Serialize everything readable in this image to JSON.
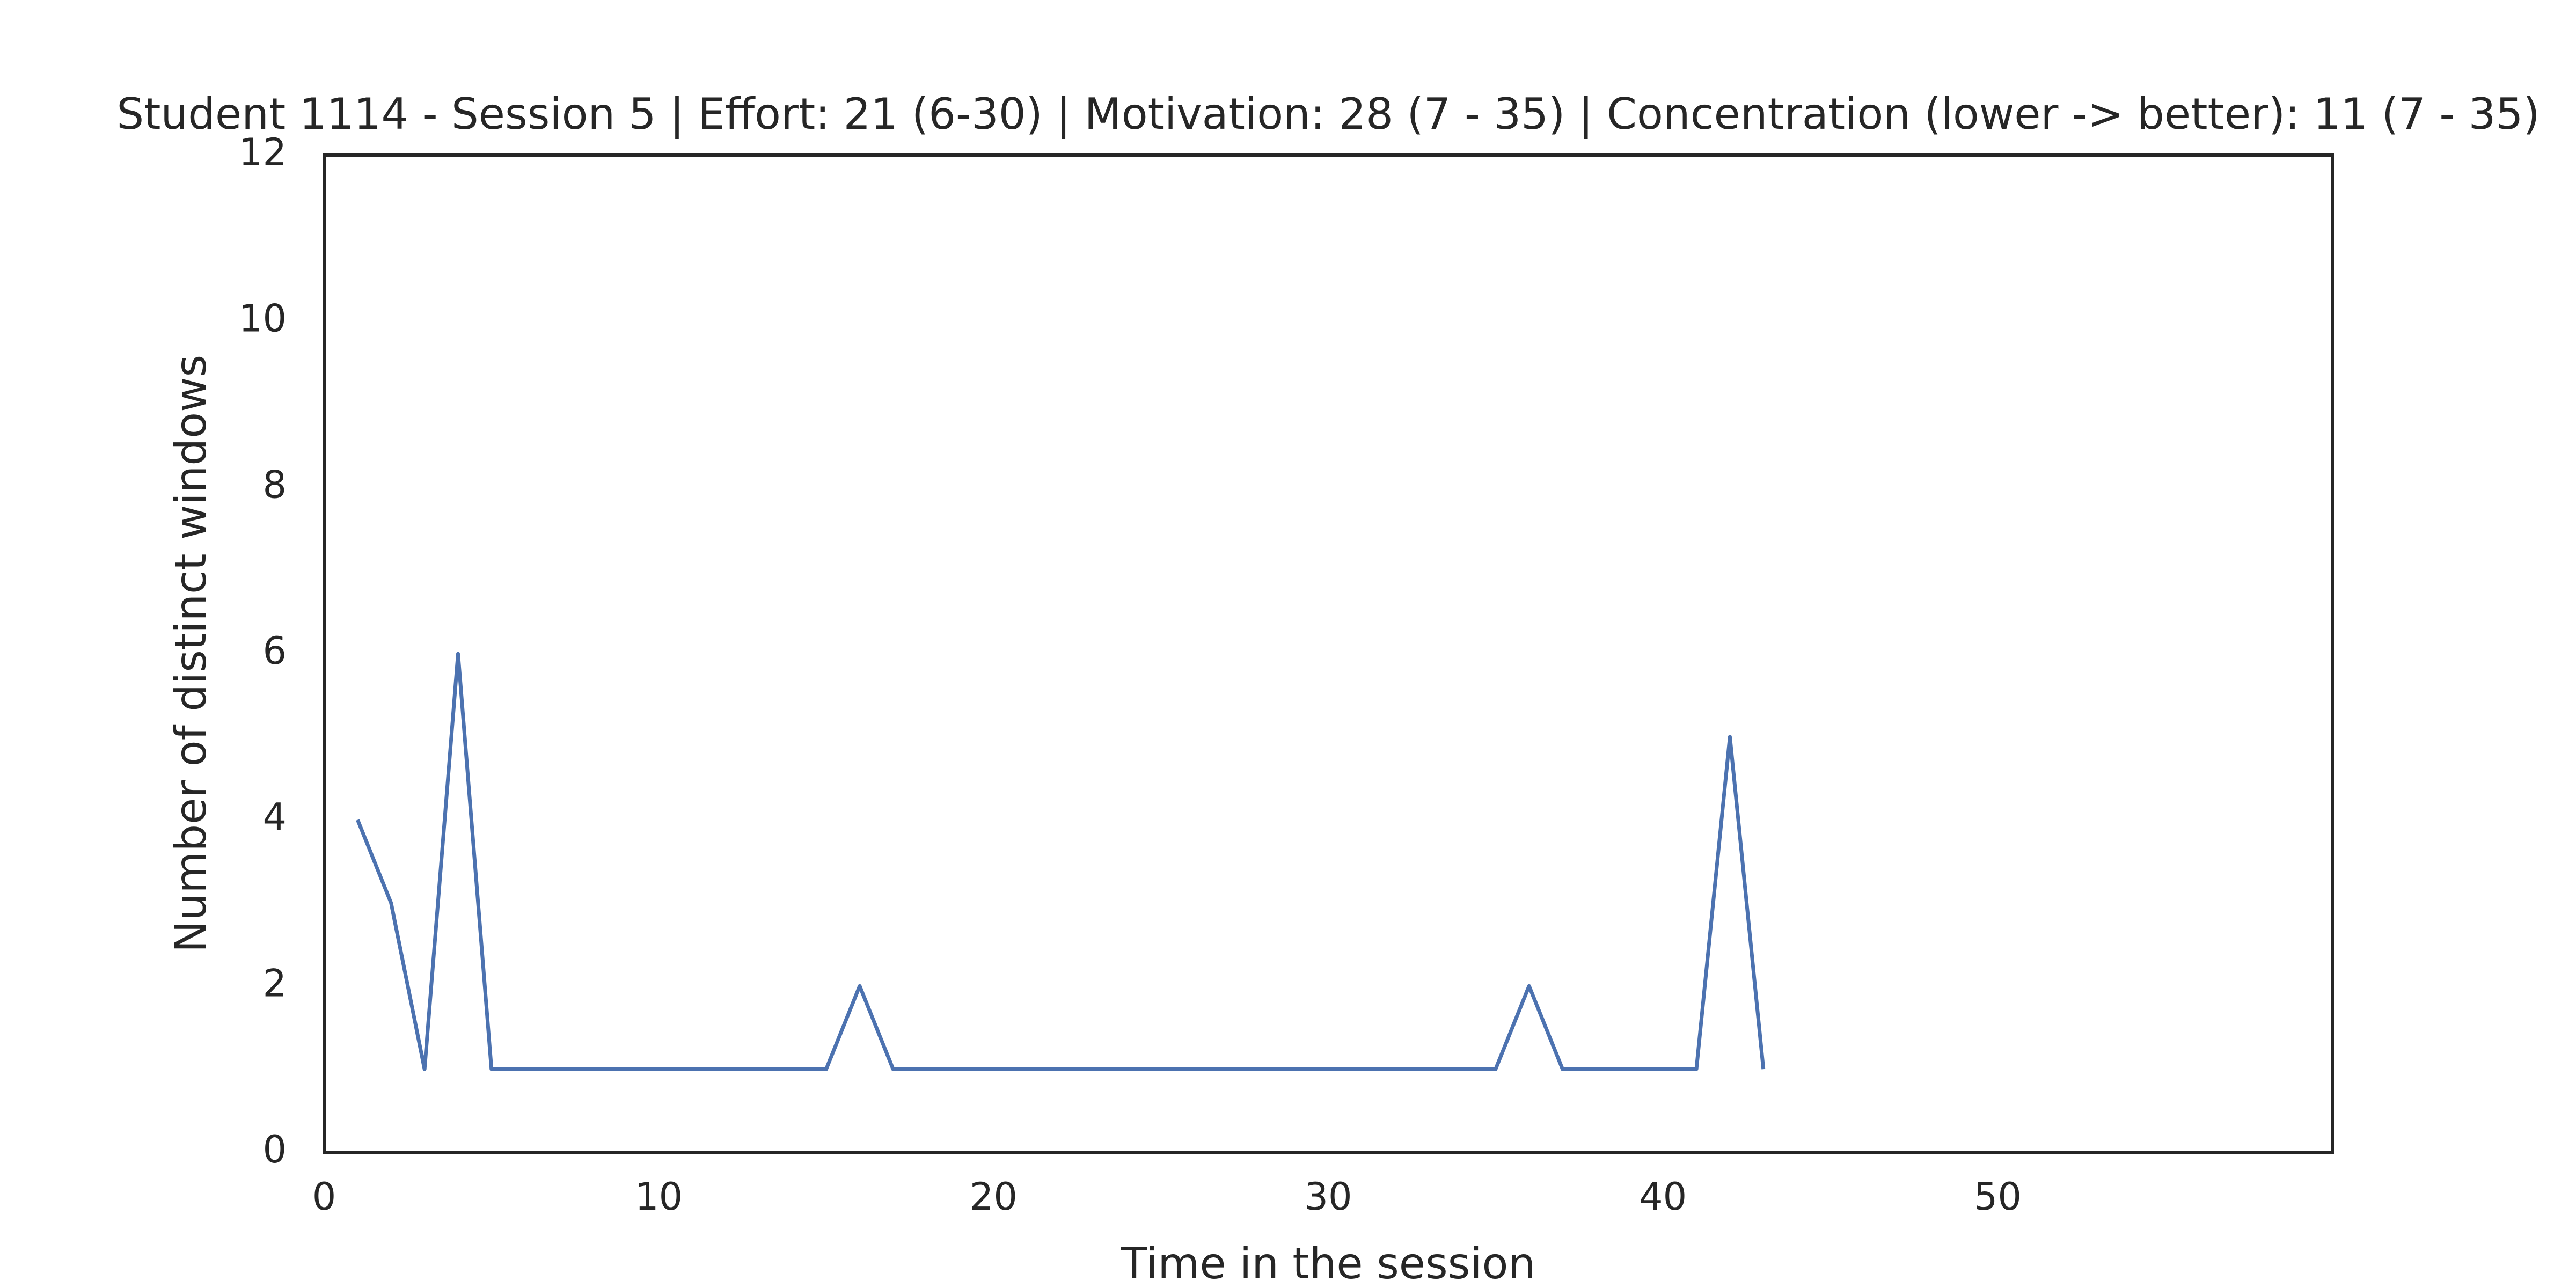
{
  "chart_data": {
    "type": "line",
    "title": "Student 1114 - Session 5 | Effort: 21 (6-30) | Motivation: 28 (7 - 35) | Concentration (lower -> better): 11 (7 - 35)",
    "xlabel": "Time in the session",
    "ylabel": "Number of distinct windows",
    "xlim": [
      0,
      60
    ],
    "ylim": [
      0,
      12
    ],
    "xticks": [
      0,
      10,
      20,
      30,
      40,
      50
    ],
    "yticks": [
      0,
      2,
      4,
      6,
      8,
      10,
      12
    ],
    "grid": false,
    "line_color": "#4c72b0",
    "series": [
      {
        "x": [
          1,
          2,
          3,
          4,
          5,
          6,
          7,
          8,
          9,
          10,
          11,
          12,
          13,
          14,
          15,
          16,
          17,
          18,
          19,
          20,
          21,
          22,
          23,
          24,
          25,
          26,
          27,
          28,
          29,
          30,
          31,
          32,
          33,
          34,
          35,
          36,
          37,
          38,
          39,
          40,
          41,
          42,
          43
        ],
        "values": [
          4,
          3,
          1,
          6,
          1,
          1,
          1,
          1,
          1,
          1,
          1,
          1,
          1,
          1,
          1,
          2,
          1,
          1,
          1,
          1,
          1,
          1,
          1,
          1,
          1,
          1,
          1,
          1,
          1,
          1,
          1,
          1,
          1,
          1,
          1,
          2,
          1,
          1,
          1,
          1,
          1,
          5,
          1
        ]
      }
    ]
  }
}
